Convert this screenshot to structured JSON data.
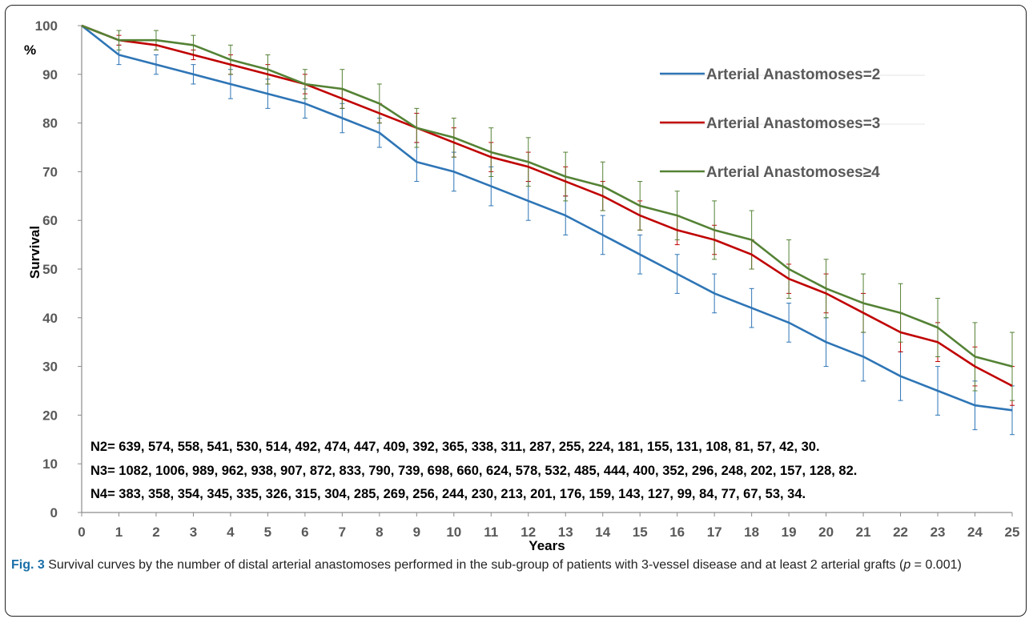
{
  "chart_data": {
    "type": "line",
    "title": "",
    "xlabel": "Years",
    "ylabel": "Survival",
    "y_unit_label": "%",
    "xlim": [
      0,
      25
    ],
    "ylim": [
      0,
      100
    ],
    "x_ticks": [
      0,
      1,
      2,
      3,
      4,
      5,
      6,
      7,
      8,
      9,
      10,
      11,
      12,
      13,
      14,
      15,
      16,
      17,
      18,
      19,
      20,
      21,
      22,
      23,
      24,
      25
    ],
    "y_ticks": [
      0,
      10,
      20,
      30,
      40,
      50,
      60,
      70,
      80,
      90,
      100
    ],
    "grid": false,
    "legend_position": "top-right",
    "x": [
      0,
      1,
      2,
      3,
      4,
      5,
      6,
      7,
      8,
      9,
      10,
      11,
      12,
      13,
      14,
      15,
      16,
      17,
      18,
      19,
      20,
      21,
      22,
      23,
      24,
      25
    ],
    "series": [
      {
        "name": "Arterial Anastomoses=2",
        "color": "#2e75b6",
        "values": [
          100,
          94,
          92,
          90,
          88,
          86,
          84,
          81,
          78,
          72,
          70,
          67,
          64,
          61,
          57,
          53,
          49,
          45,
          42,
          39,
          35,
          32,
          28,
          25,
          22,
          21
        ],
        "error": [
          0,
          2,
          2,
          2,
          3,
          3,
          3,
          3,
          3,
          4,
          4,
          4,
          4,
          4,
          4,
          4,
          4,
          4,
          4,
          4,
          5,
          5,
          5,
          5,
          5,
          5
        ]
      },
      {
        "name": "Arterial Anastomoses=3",
        "color": "#c00000",
        "values": [
          100,
          97,
          96,
          94,
          92,
          90,
          88,
          85,
          82,
          79,
          76,
          73,
          71,
          68,
          65,
          61,
          58,
          56,
          53,
          48,
          45,
          41,
          37,
          35,
          30,
          26
        ],
        "error": [
          0,
          1,
          1,
          1,
          2,
          2,
          2,
          2,
          2,
          3,
          3,
          3,
          3,
          3,
          3,
          3,
          3,
          3,
          3,
          3,
          4,
          4,
          4,
          4,
          4,
          4
        ]
      },
      {
        "name": "Arterial Anastomoses≥4",
        "color": "#548235",
        "values": [
          100,
          97,
          97,
          96,
          93,
          91,
          88,
          87,
          84,
          79,
          77,
          74,
          72,
          69,
          67,
          63,
          61,
          58,
          56,
          50,
          46,
          43,
          41,
          38,
          32,
          30
        ],
        "error": [
          0,
          2,
          2,
          2,
          3,
          3,
          3,
          4,
          4,
          4,
          4,
          5,
          5,
          5,
          5,
          5,
          5,
          6,
          6,
          6,
          6,
          6,
          6,
          6,
          7,
          7
        ]
      }
    ],
    "annotations": [
      "N2= 639, 574, 558, 541, 530, 514, 492, 474, 447, 409, 392, 365, 338, 311, 287, 255, 224, 181, 155, 131, 108, 81, 57, 42, 30.",
      "N3= 1082, 1006, 989, 962, 938, 907, 872, 833, 790, 739, 698, 660, 624, 578, 532, 485, 444, 400, 352, 296, 248, 202, 157, 128, 82.",
      "N4= 383, 358, 354, 345, 335, 326, 315, 304, 285, 269, 256, 244, 230, 213, 201, 176, 159, 143, 127, 99, 84, 77, 67, 53, 34."
    ]
  },
  "caption": {
    "label": "Fig. 3",
    "text_before_p": " Survival curves by the number of distal arterial anastomoses performed in the sub-group of patients with 3-vessel disease and at least 2 arterial grafts (",
    "p_symbol": "p",
    "text_after_p": " = 0.001)"
  }
}
